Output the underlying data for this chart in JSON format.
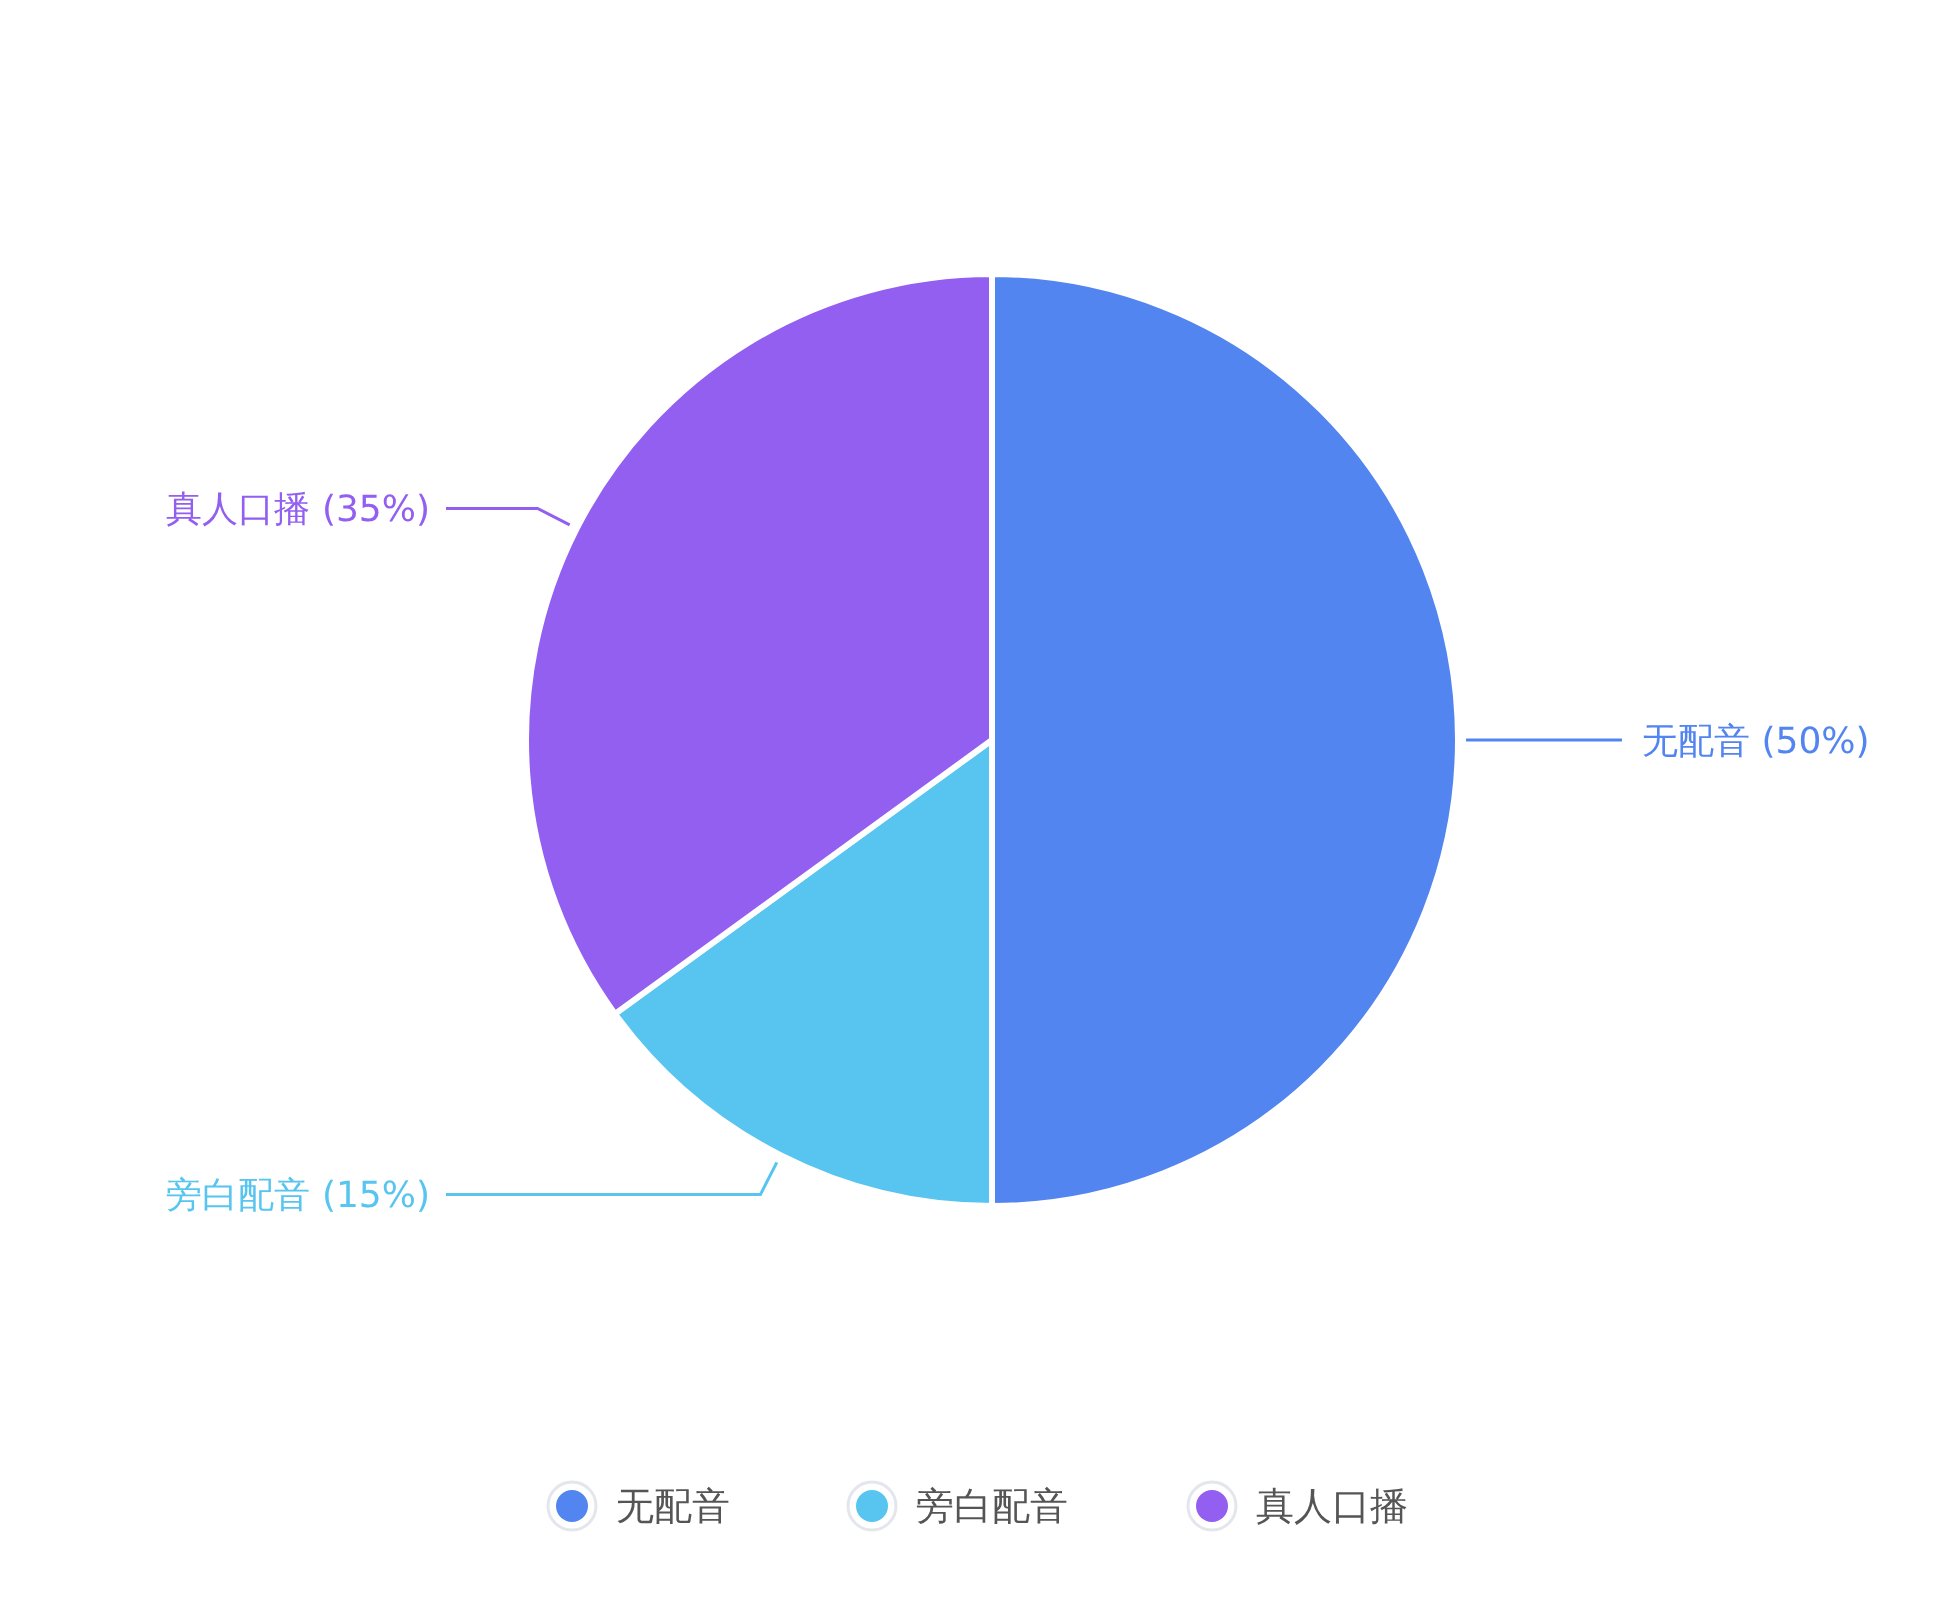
{
  "chart_data": {
    "type": "pie",
    "categories": [
      "无配音",
      "旁白配音",
      "真人口播"
    ],
    "values": [
      50,
      15,
      35
    ],
    "colors": [
      "#5285f0",
      "#58c5f0",
      "#925ff0"
    ],
    "value_labels": [
      "无配音 (50%)",
      "旁白配音 (15%)",
      "真人口播 (35%)"
    ],
    "legend": "bottom"
  }
}
